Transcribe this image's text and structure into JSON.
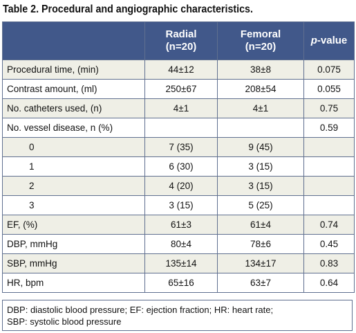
{
  "title": "Table 2. Procedural and angiographic characteristics.",
  "header": {
    "col_radial": "Radial",
    "col_radial_n": "(n=20)",
    "col_femoral": "Femoral",
    "col_femoral_n": "(n=20)",
    "col_p_italic": "p",
    "col_p_rest": "-value"
  },
  "rows": [
    {
      "label": "Procedural time, (min)",
      "radial": "44±12",
      "femoral": "38±8",
      "p": "0.075"
    },
    {
      "label": "Contrast amount, (ml)",
      "radial": "250±67",
      "femoral": "208±54",
      "p": "0.055"
    },
    {
      "label": "No. catheters used, (n)",
      "radial": "4±1",
      "femoral": "4±1",
      "p": "0.75"
    },
    {
      "label": "No. vessel disease, n (%)",
      "radial": "",
      "femoral": "",
      "p": "0.59"
    },
    {
      "label": "0",
      "radial": "7 (35)",
      "femoral": "9 (45)",
      "p": ""
    },
    {
      "label": "1",
      "radial": "6 (30)",
      "femoral": "3 (15)",
      "p": ""
    },
    {
      "label": "2",
      "radial": "4 (20)",
      "femoral": "3 (15)",
      "p": ""
    },
    {
      "label": "3",
      "radial": "3 (15)",
      "femoral": "5 (25)",
      "p": ""
    },
    {
      "label": "EF, (%)",
      "radial": "61±3",
      "femoral": "61±4",
      "p": "0.74"
    },
    {
      "label": "DBP, mmHg",
      "radial": "80±4",
      "femoral": "78±6",
      "p": "0.45"
    },
    {
      "label": "SBP, mmHg",
      "radial": "135±14",
      "femoral": "134±17",
      "p": "0.83"
    },
    {
      "label": "HR, bpm",
      "radial": "65±16",
      "femoral": "63±7",
      "p": "0.64"
    }
  ],
  "footnote": {
    "line1": "DBP: diastolic blood pressure; EF: ejection fraction; HR: heart rate;",
    "line2": "SBP: systolic blood pressure"
  }
}
